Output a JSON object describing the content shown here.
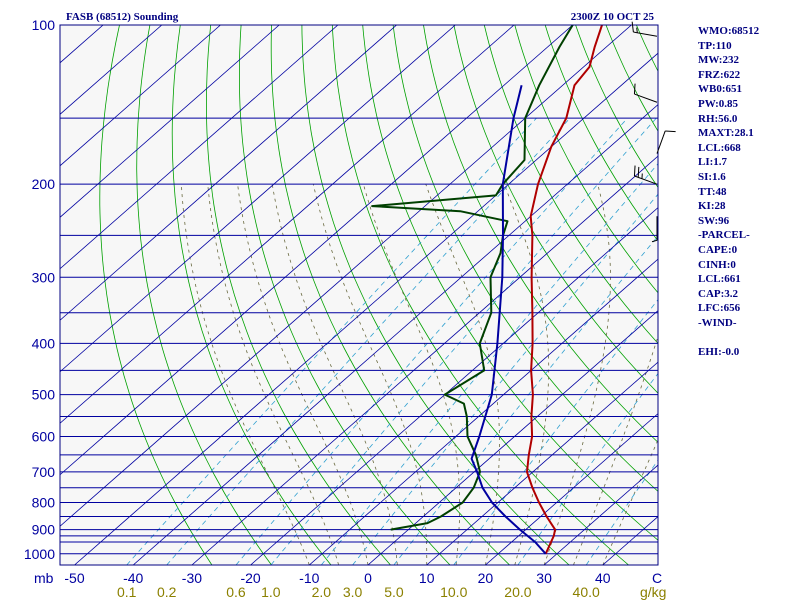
{
  "header": {
    "station": "FASB (68512) Sounding",
    "time": "2300Z 10 OCT 25"
  },
  "indices": [
    "WMO:68512",
    "TP:110",
    "MW:232",
    "FRZ:622",
    "WB0:651",
    "PW:0.85",
    "RH:56.0",
    "MAXT:28.1",
    "LCL:668",
    "LI:1.7",
    "SI:1.6",
    "TT:48",
    "KI:28",
    "SW:96",
    "-PARCEL-",
    "CAPE:0",
    "CINH:0",
    "LCL:661",
    "CAP:3.2",
    "LFC:656",
    "-WIND-",
    "",
    "EHI:-0.0"
  ],
  "chart_data": {
    "type": "line",
    "diagram": "skew-T log-P",
    "y_unit": "mb",
    "x_unit": "C",
    "mixing_ratio_unit": "g/kg",
    "pressure_range": [
      1050,
      100
    ],
    "temperature_range": [
      -50,
      50
    ],
    "pressure_ticks": [
      {
        "value": 100,
        "label": "100"
      },
      {
        "value": 200,
        "label": "200"
      },
      {
        "value": 300,
        "label": "300"
      },
      {
        "value": 400,
        "label": "400"
      },
      {
        "value": 500,
        "label": "500"
      },
      {
        "value": 600,
        "label": "600"
      },
      {
        "value": 700,
        "label": "700"
      },
      {
        "value": 800,
        "label": "800"
      },
      {
        "value": 900,
        "label": "900"
      },
      {
        "value": 1000,
        "label": "1000"
      }
    ],
    "isobars": [
      100,
      150,
      200,
      250,
      300,
      350,
      400,
      450,
      500,
      550,
      600,
      650,
      700,
      750,
      800,
      850,
      900,
      925,
      950,
      1000,
      1050
    ],
    "temperature_ticks": [
      {
        "value": -50,
        "label": "-50"
      },
      {
        "value": -40,
        "label": "-40"
      },
      {
        "value": -30,
        "label": "-30"
      },
      {
        "value": -20,
        "label": "-20"
      },
      {
        "value": -10,
        "label": "-10"
      },
      {
        "value": 0,
        "label": "0"
      },
      {
        "value": 10,
        "label": "10"
      },
      {
        "value": 20,
        "label": "20"
      },
      {
        "value": 30,
        "label": "30"
      },
      {
        "value": 40,
        "label": "40"
      }
    ],
    "mixing_ratio_ticks": [
      {
        "value": 0.1,
        "label": "0.1"
      },
      {
        "value": 0.2,
        "label": "0.2"
      },
      {
        "value": 0.6,
        "label": "0.6"
      },
      {
        "value": 1.0,
        "label": "1.0"
      },
      {
        "value": 2.0,
        "label": "2.0"
      },
      {
        "value": 3.0,
        "label": "3.0"
      },
      {
        "value": 5.0,
        "label": "5.0"
      },
      {
        "value": 10.0,
        "label": "10.0"
      },
      {
        "value": 20.0,
        "label": "20.0"
      },
      {
        "value": 40.0,
        "label": "40.0"
      }
    ],
    "series": [
      {
        "key": "temperature",
        "color": "#b00000",
        "points": [
          [
            1000,
            28.1
          ],
          [
            925,
            26
          ],
          [
            900,
            25
          ],
          [
            850,
            21
          ],
          [
            800,
            17
          ],
          [
            750,
            13
          ],
          [
            700,
            9
          ],
          [
            650,
            6
          ],
          [
            600,
            3
          ],
          [
            550,
            -1
          ],
          [
            500,
            -5
          ],
          [
            450,
            -10
          ],
          [
            400,
            -15
          ],
          [
            350,
            -21
          ],
          [
            300,
            -28
          ],
          [
            250,
            -36
          ],
          [
            230,
            -40
          ],
          [
            200,
            -45
          ],
          [
            170,
            -50
          ],
          [
            150,
            -53
          ],
          [
            130,
            -58
          ],
          [
            120,
            -59
          ],
          [
            110,
            -62
          ],
          [
            100,
            -65
          ]
        ]
      },
      {
        "key": "dewpoint",
        "color": "#004000",
        "points": [
          [
            900,
            -3
          ],
          [
            875,
            2
          ],
          [
            850,
            3
          ],
          [
            800,
            4
          ],
          [
            750,
            3
          ],
          [
            700,
            1
          ],
          [
            650,
            -3
          ],
          [
            600,
            -8
          ],
          [
            550,
            -12
          ],
          [
            520,
            -15
          ],
          [
            500,
            -20
          ],
          [
            450,
            -18
          ],
          [
            400,
            -24
          ],
          [
            350,
            -28
          ],
          [
            300,
            -35
          ],
          [
            270,
            -38
          ],
          [
            250,
            -41
          ],
          [
            235,
            -43
          ],
          [
            225,
            -53
          ],
          [
            220,
            -69
          ],
          [
            210,
            -50
          ],
          [
            200,
            -51
          ],
          [
            180,
            -52
          ],
          [
            150,
            -60
          ],
          [
            130,
            -64
          ],
          [
            110,
            -68
          ],
          [
            100,
            -70
          ]
        ]
      },
      {
        "key": "parcel",
        "color": "#0000a0",
        "points": [
          [
            1000,
            28.1
          ],
          [
            950,
            24
          ],
          [
            900,
            19
          ],
          [
            850,
            14
          ],
          [
            800,
            9
          ],
          [
            750,
            4.5
          ],
          [
            700,
            0.5
          ],
          [
            661,
            -3
          ],
          [
            600,
            -6
          ],
          [
            500,
            -12
          ],
          [
            400,
            -21
          ],
          [
            300,
            -33
          ],
          [
            250,
            -41
          ],
          [
            200,
            -51
          ],
          [
            150,
            -62
          ],
          [
            130,
            -67
          ]
        ]
      }
    ],
    "wind_barbs": [
      {
        "pressure": 105,
        "direction": 280,
        "speed": 15
      },
      {
        "pressure": 140,
        "direction": 290,
        "speed": 10
      },
      {
        "pressure": 175,
        "direction": 20,
        "speed": 10
      },
      {
        "pressure": 200,
        "direction": 290,
        "speed": 25
      },
      {
        "pressure": 230,
        "direction": 180,
        "speed": 5
      }
    ]
  }
}
